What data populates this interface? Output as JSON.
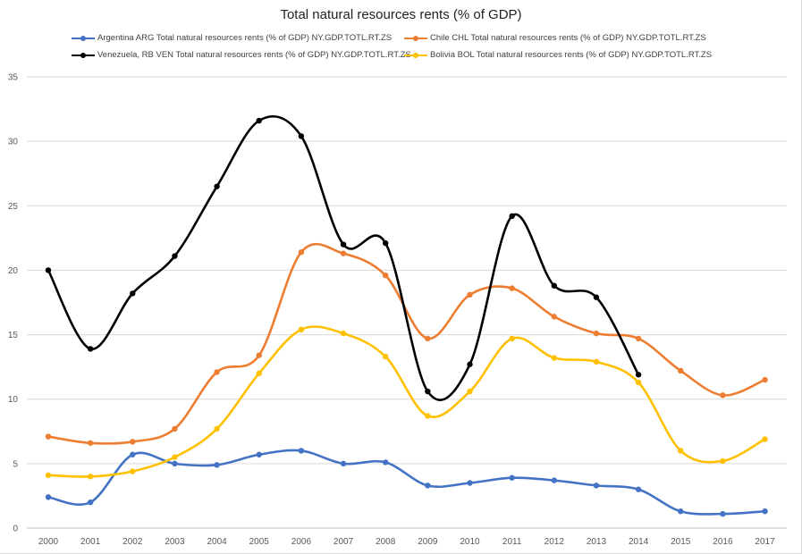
{
  "chart_data": {
    "type": "line",
    "title": "Total natural resources rents (% of GDP)",
    "xlabel": "",
    "ylabel": "",
    "ylim": [
      0,
      35
    ],
    "yticks": [
      0,
      5,
      10,
      15,
      20,
      25,
      30,
      35
    ],
    "grid": true,
    "smoothed": true,
    "legend_position": "top",
    "categories": [
      "2000",
      "2001",
      "2002",
      "2003",
      "2004",
      "2005",
      "2006",
      "2007",
      "2008",
      "2009",
      "2010",
      "2011",
      "2012",
      "2013",
      "2014",
      "2015",
      "2016",
      "2017"
    ],
    "series": [
      {
        "name": "Argentina ARG Total natural resources rents (% of GDP) NY.GDP.TOTL.RT.ZS",
        "color": "#4472c4",
        "values": [
          2.4,
          2.0,
          5.7,
          5.0,
          4.9,
          5.7,
          6.0,
          5.0,
          5.1,
          3.3,
          3.5,
          3.9,
          3.7,
          3.3,
          3.0,
          1.3,
          1.1,
          1.3
        ]
      },
      {
        "name": "Chile CHL Total natural resources rents (% of GDP) NY.GDP.TOTL.RT.ZS",
        "color": "#ed7d31",
        "values": [
          7.1,
          6.6,
          6.7,
          7.7,
          12.1,
          13.4,
          21.4,
          21.3,
          19.6,
          14.7,
          18.1,
          18.6,
          16.4,
          15.1,
          14.7,
          12.2,
          10.3,
          11.5
        ]
      },
      {
        "name": "Venezuela, RB VEN Total natural resources rents (% of GDP) NY.GDP.TOTL.RT.ZS",
        "color": "#000000",
        "values": [
          20.0,
          13.9,
          18.2,
          21.1,
          26.5,
          31.6,
          30.4,
          22.0,
          22.1,
          10.6,
          12.7,
          24.2,
          18.8,
          17.9,
          11.9,
          null,
          null,
          null
        ]
      },
      {
        "name": "Bolivia BOL Total natural resources rents (% of GDP) NY.GDP.TOTL.RT.ZS",
        "color": "#ffc000",
        "values": [
          4.1,
          4.0,
          4.4,
          5.5,
          7.7,
          12.0,
          15.4,
          15.1,
          13.3,
          8.7,
          10.6,
          14.7,
          13.2,
          12.9,
          11.3,
          6.0,
          5.2,
          6.9
        ]
      }
    ]
  }
}
